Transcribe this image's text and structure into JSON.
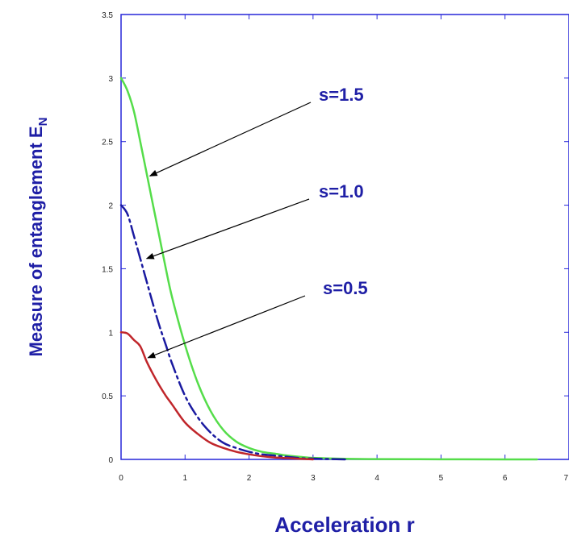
{
  "chart_data": {
    "type": "line",
    "title": "",
    "xlabel": "Acceleration r",
    "ylabel": "Measure of entanglement E",
    "ylabel_subscript": "N",
    "xlim": [
      0,
      7
    ],
    "ylim": [
      0,
      3.5
    ],
    "xticks": [
      "0",
      "1",
      "2",
      "3",
      "4",
      "5",
      "6",
      "7"
    ],
    "yticks": [
      "0",
      "0.5",
      "1",
      "1.5",
      "2",
      "2.5",
      "3",
      "3.5"
    ],
    "grid": false,
    "colors": {
      "frame": "#2626d9",
      "label": "#1f1fa6",
      "arrow": "#000000"
    },
    "series": [
      {
        "color": "#55dd4a",
        "dash": "solid",
        "x": [
          0,
          0.1,
          0.2,
          0.3,
          0.4,
          0.5,
          0.6,
          0.7,
          0.8,
          1.0,
          1.2,
          1.4,
          1.6,
          1.8,
          2.0,
          2.2,
          2.4,
          2.6,
          2.8,
          3.0,
          3.5,
          4,
          5,
          6,
          6.5
        ],
        "y": [
          3.0,
          2.9,
          2.74,
          2.5,
          2.25,
          2.0,
          1.75,
          1.5,
          1.27,
          0.9,
          0.6,
          0.38,
          0.23,
          0.14,
          0.09,
          0.06,
          0.045,
          0.03,
          0.02,
          0.012,
          0.005,
          0.002,
          0.001,
          0.0,
          0.0
        ]
      },
      {
        "color": "#1a1aa0",
        "dash": "dash-dot",
        "x": [
          0,
          0.1,
          0.2,
          0.3,
          0.4,
          0.5,
          0.6,
          0.7,
          0.8,
          1.0,
          1.2,
          1.4,
          1.6,
          1.8,
          2.0,
          2.2,
          2.4,
          2.6,
          2.8,
          3.0,
          3.5
        ],
        "y": [
          2.0,
          1.93,
          1.76,
          1.58,
          1.4,
          1.22,
          1.05,
          0.9,
          0.75,
          0.5,
          0.33,
          0.21,
          0.13,
          0.09,
          0.06,
          0.04,
          0.03,
          0.02,
          0.01,
          0.006,
          0.0
        ]
      },
      {
        "color": "#c0262b",
        "dash": "solid",
        "x": [
          0,
          0.1,
          0.2,
          0.3,
          0.4,
          0.5,
          0.6,
          0.7,
          0.8,
          1.0,
          1.2,
          1.4,
          1.6,
          1.8,
          2.0,
          2.2,
          2.4,
          2.6,
          2.8,
          3.0
        ],
        "y": [
          1.0,
          0.99,
          0.94,
          0.89,
          0.77,
          0.67,
          0.58,
          0.5,
          0.43,
          0.29,
          0.2,
          0.13,
          0.09,
          0.06,
          0.04,
          0.025,
          0.015,
          0.01,
          0.005,
          0.0
        ]
      }
    ],
    "annotations": [
      {
        "text": "s=1.5",
        "anchor_x": 0.45,
        "anchor_y": 2.23
      },
      {
        "text": "s=1.0",
        "anchor_x": 0.4,
        "anchor_y": 1.58
      },
      {
        "text": "s=0.5",
        "anchor_x": 0.42,
        "anchor_y": 0.8
      }
    ]
  }
}
